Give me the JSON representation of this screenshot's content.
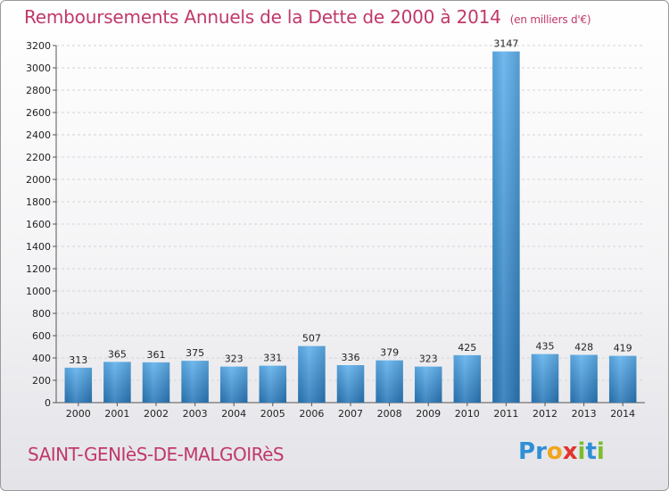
{
  "header": {
    "title": "Remboursements Annuels de la Dette de 2000 à 2014",
    "unit": "(en milliers d'€)"
  },
  "footer": {
    "commune": "SAINT-GENIèS-DE-MALGOIRèS",
    "logo_letters": [
      {
        "ch": "P",
        "color": "#2f8fd6"
      },
      {
        "ch": "r",
        "color": "#2f8fd6"
      },
      {
        "ch": "o",
        "color": "#f2a51c"
      },
      {
        "ch": "x",
        "color": "#e2342c"
      },
      {
        "ch": "i",
        "color": "#7cbd2e"
      },
      {
        "ch": "t",
        "color": "#2f8fd6"
      },
      {
        "ch": "i",
        "color": "#7cbd2e"
      }
    ]
  },
  "chart_data": {
    "type": "bar",
    "title": "Remboursements Annuels de la Dette de 2000 à 2014",
    "ylabel": "",
    "xlabel": "",
    "categories": [
      "2000",
      "2001",
      "2002",
      "2003",
      "2004",
      "2005",
      "2006",
      "2007",
      "2008",
      "2009",
      "2010",
      "2011",
      "2012",
      "2013",
      "2014"
    ],
    "values": [
      313,
      365,
      361,
      375,
      323,
      331,
      507,
      336,
      379,
      323,
      425,
      3147,
      435,
      428,
      419
    ],
    "ylim": [
      0,
      3200
    ],
    "yticks": [
      0,
      200,
      400,
      600,
      800,
      1000,
      1200,
      1400,
      1600,
      1800,
      2000,
      2200,
      2400,
      2600,
      2800,
      3000,
      3200
    ],
    "grid": true,
    "bar_color_top": "#5fb0ec",
    "bar_color_bottom": "#2a78b8"
  }
}
